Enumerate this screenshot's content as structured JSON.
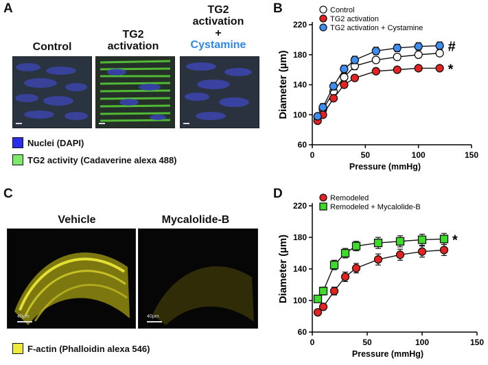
{
  "panels": {
    "A": {
      "letter": "A",
      "images": [
        {
          "label_lines": [
            "Control"
          ]
        },
        {
          "label_lines": [
            "TG2",
            "activation"
          ]
        },
        {
          "label_lines": [
            "TG2",
            "activation",
            "+"
          ],
          "highlight": "Cystamine",
          "highlight_color": "#2f86e6"
        }
      ],
      "legend": [
        {
          "label": "Nuclei (DAPI)",
          "color": "#2a2ee8"
        },
        {
          "label": "TG2 activity (Cadaverine alexa 488)",
          "color": "#7ee86a"
        }
      ]
    },
    "C": {
      "letter": "C",
      "images": [
        {
          "label": "Vehicle",
          "scale_label": "40μm"
        },
        {
          "label": "Mycalolide-B",
          "scale_label": "40μm"
        }
      ],
      "legend": [
        {
          "label": "F-actin (Phalloidin alexa 546)",
          "color": "#f0ea3a"
        }
      ]
    }
  },
  "chart_data": [
    {
      "panel": "B",
      "type": "line",
      "xlabel": "Pressure (mmHg)",
      "ylabel": "Diameter (µm)",
      "xlim": [
        0,
        150
      ],
      "ylim": [
        60,
        220
      ],
      "xticks": [
        0,
        50,
        100,
        150
      ],
      "yticks": [
        60,
        100,
        140,
        180,
        220
      ],
      "legend_position": "top-left",
      "x": [
        5,
        10,
        20,
        30,
        40,
        60,
        80,
        100,
        120
      ],
      "series": [
        {
          "name": "Control",
          "marker": "circle",
          "color": "#ffffff",
          "values": [
            97,
            107,
            131,
            150,
            165,
            173,
            177,
            180,
            182
          ],
          "errors": [
            4,
            5,
            5,
            5,
            5,
            4,
            4,
            4,
            4
          ]
        },
        {
          "name": "TG2 activation",
          "marker": "circle",
          "color": "#e32222",
          "values": [
            92,
            100,
            122,
            140,
            149,
            158,
            160,
            162,
            162
          ],
          "errors": [
            3,
            4,
            4,
            4,
            4,
            3,
            3,
            2,
            2
          ]
        },
        {
          "name": "TG2 activation + Cystamine",
          "marker": "circle",
          "color": "#3d8ef0",
          "values": [
            98,
            110,
            138,
            161,
            173,
            185,
            189,
            191,
            192
          ],
          "errors": [
            4,
            5,
            5,
            5,
            5,
            5,
            5,
            5,
            5
          ]
        }
      ],
      "annotations": [
        {
          "text": "#",
          "series": "TG2 activation + Cystamine"
        },
        {
          "text": "*",
          "series": "TG2 activation"
        }
      ]
    },
    {
      "panel": "D",
      "type": "line",
      "xlabel": "Pressure (mmHg)",
      "ylabel": "Diameter (µm)",
      "xlim": [
        0,
        150
      ],
      "ylim": [
        60,
        220
      ],
      "xticks": [
        0,
        50,
        100,
        150
      ],
      "yticks": [
        60,
        100,
        140,
        180,
        220
      ],
      "legend_position": "top-left",
      "x": [
        5,
        10,
        20,
        30,
        40,
        60,
        80,
        100,
        120
      ],
      "series": [
        {
          "name": "Remodeled",
          "marker": "circle",
          "color": "#e32222",
          "values": [
            85,
            92,
            112,
            130,
            141,
            152,
            158,
            162,
            164
          ],
          "errors": [
            3,
            4,
            5,
            6,
            6,
            7,
            7,
            7,
            7
          ]
        },
        {
          "name": "Remodeled + Mycalolide-B",
          "marker": "square",
          "color": "#3ddc2a",
          "values": [
            102,
            112,
            145,
            160,
            169,
            173,
            175,
            177,
            178
          ],
          "errors": [
            4,
            5,
            6,
            6,
            6,
            7,
            7,
            7,
            7
          ]
        }
      ],
      "annotations": [
        {
          "text": "*",
          "series": "Remodeled + Mycalolide-B"
        }
      ]
    }
  ],
  "chart_letters": {
    "B": "B",
    "D": "D"
  }
}
